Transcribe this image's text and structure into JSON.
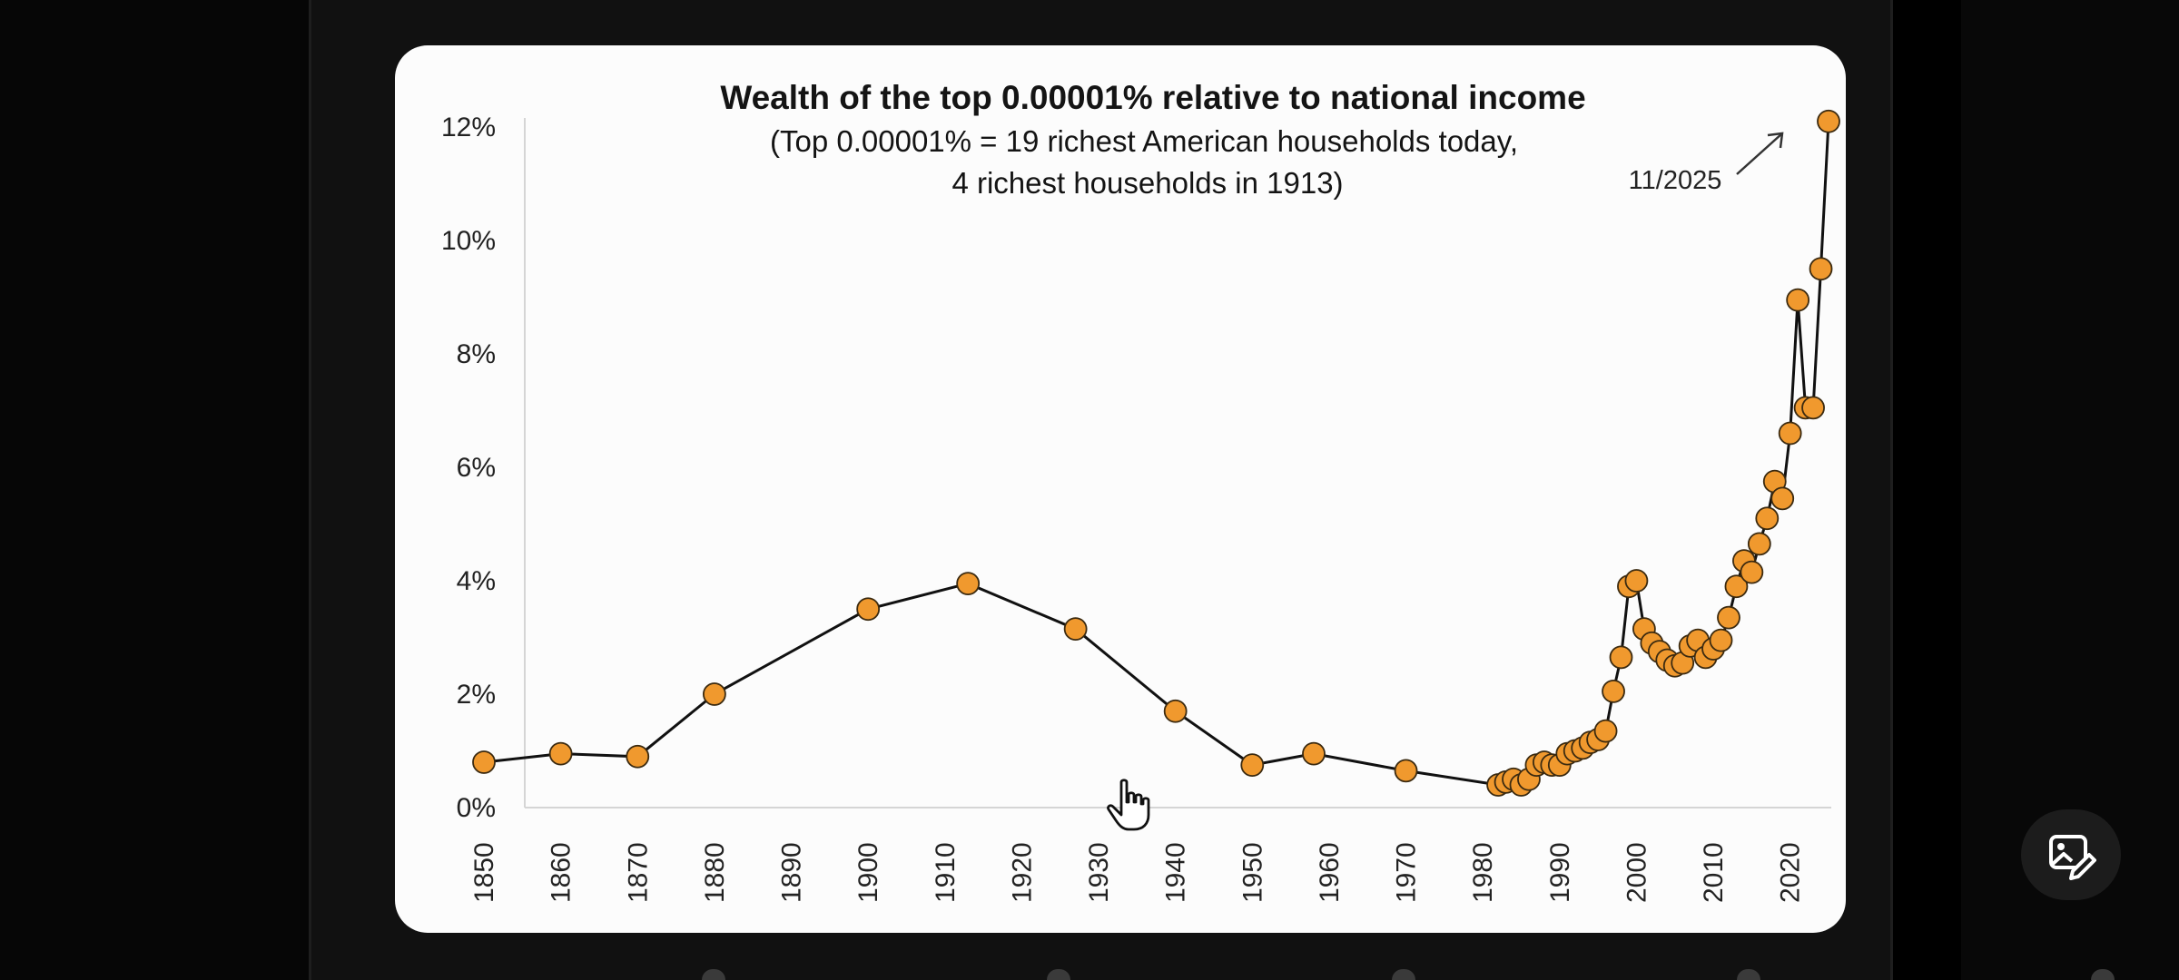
{
  "post": {
    "edit_image_icon": "image-edit-icon",
    "cursor_icon": "hand-pointer-icon"
  },
  "chart_data": {
    "type": "line",
    "title": "Wealth of the top 0.00001% relative to national income",
    "subtitle_line1": "(Top 0.00001% = 19 richest American households today,",
    "subtitle_line2": "4 richest households in 1913)",
    "annotation": "11/2025",
    "xlabel": "",
    "ylabel": "",
    "y_unit": "%",
    "xlim": [
      1850,
      2025
    ],
    "ylim": [
      0,
      12
    ],
    "x_ticks": [
      "1850",
      "1860",
      "1870",
      "1880",
      "1890",
      "1900",
      "1910",
      "1920",
      "1930",
      "1940",
      "1950",
      "1960",
      "1970",
      "1980",
      "1990",
      "2000",
      "2010",
      "2020"
    ],
    "y_ticks": [
      "0%",
      "2%",
      "4%",
      "6%",
      "8%",
      "10%",
      "12%"
    ],
    "grid": false,
    "marker_color": "#f0992e",
    "line_color": "#111111",
    "series": [
      {
        "x": [
          1850,
          1860,
          1870,
          1880,
          1900,
          1913,
          1927,
          1940,
          1950,
          1958,
          1970,
          1982,
          1983,
          1984,
          1985,
          1986,
          1987,
          1988,
          1989,
          1990,
          1991,
          1992,
          1993,
          1994,
          1995,
          1996,
          1997,
          1998,
          1999,
          2000,
          2001,
          2002,
          2003,
          2004,
          2005,
          2006,
          2007,
          2008,
          2009,
          2010,
          2011,
          2012,
          2013,
          2014,
          2015,
          2016,
          2017,
          2018,
          2019,
          2020,
          2021,
          2022,
          2023,
          2024,
          2025
        ],
        "y": [
          0.8,
          0.95,
          0.9,
          2.0,
          3.5,
          3.95,
          3.15,
          1.7,
          0.75,
          0.95,
          0.65,
          0.4,
          0.45,
          0.5,
          0.4,
          0.5,
          0.75,
          0.8,
          0.75,
          0.75,
          0.95,
          1.0,
          1.05,
          1.15,
          1.2,
          1.35,
          2.05,
          2.65,
          3.9,
          4.0,
          3.15,
          2.9,
          2.75,
          2.6,
          2.5,
          2.55,
          2.85,
          2.95,
          2.65,
          2.8,
          2.95,
          3.35,
          3.9,
          4.35,
          4.15,
          4.65,
          5.1,
          5.75,
          5.45,
          6.6,
          8.95,
          7.05,
          7.05,
          9.5,
          12.1
        ]
      }
    ]
  }
}
